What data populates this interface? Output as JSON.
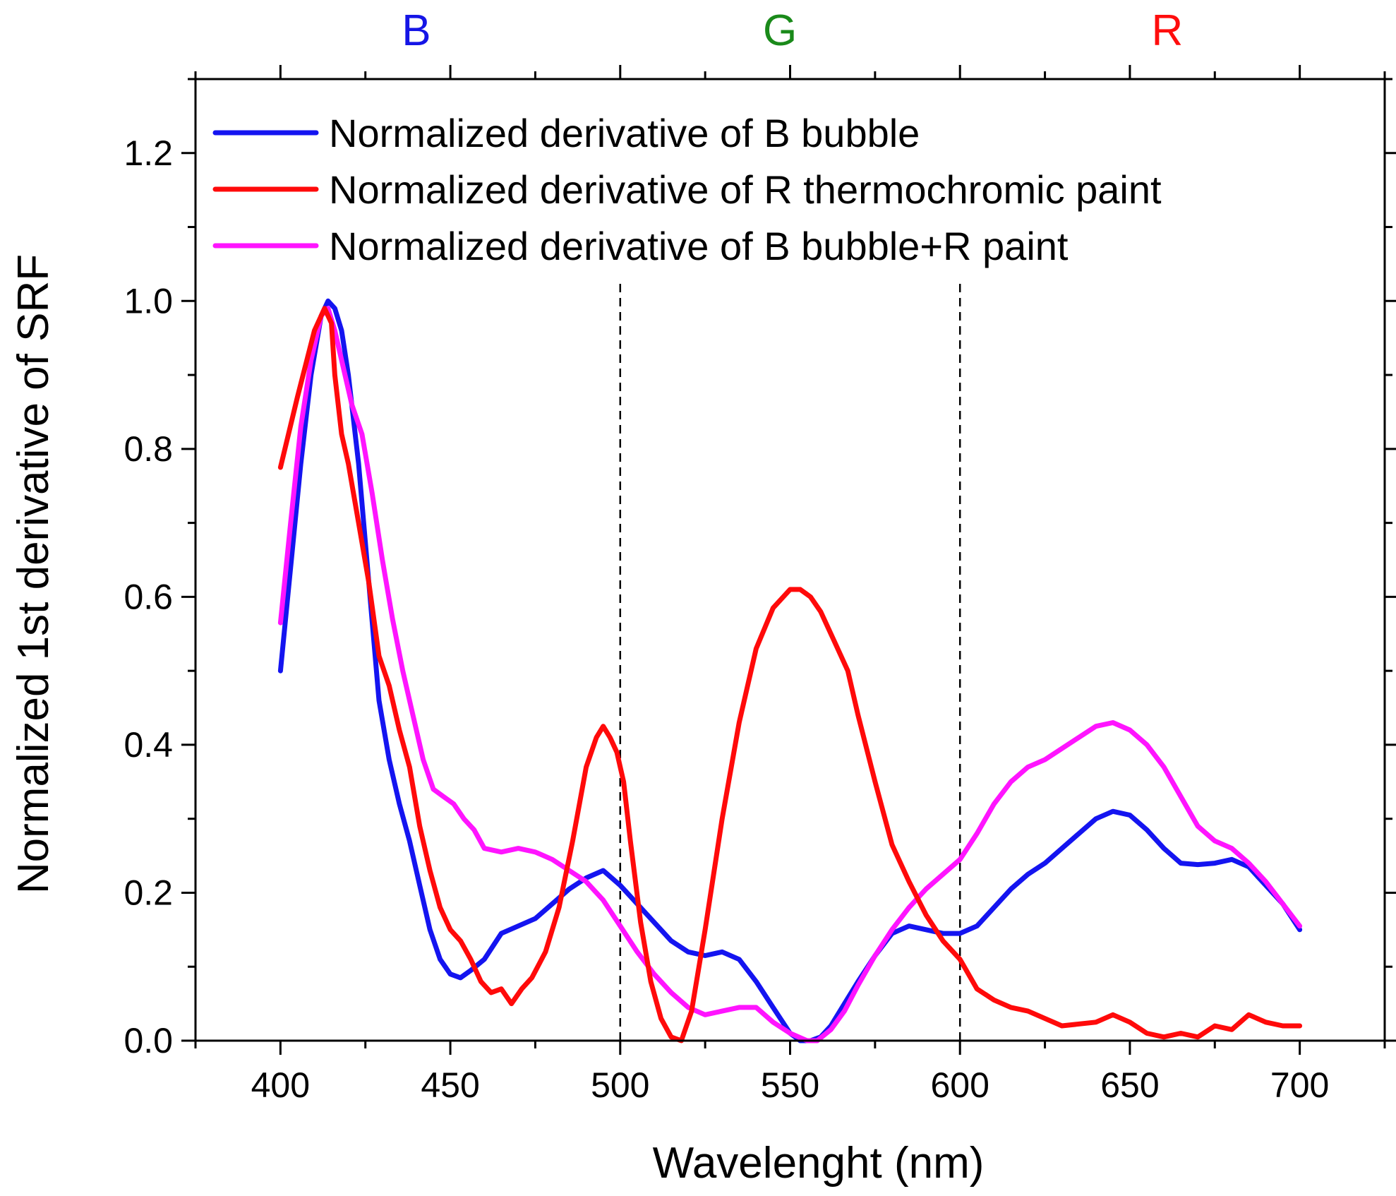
{
  "chart_data": {
    "type": "line",
    "xlabel": "Wavelenght (nm)",
    "ylabel": "Normalized 1st derivative of SRF",
    "xlim": [
      375,
      725
    ],
    "ylim": [
      0,
      1.3
    ],
    "xticks": [
      400,
      450,
      500,
      550,
      600,
      650,
      700
    ],
    "xtick_labels": [
      "400",
      "450",
      "500",
      "550",
      "600",
      "650",
      "700"
    ],
    "yticks": [
      0,
      0.2,
      0.4,
      0.6,
      0.8,
      1.0,
      1.2
    ],
    "ytick_labels": [
      "0.0",
      "0.2",
      "0.4",
      "0.6",
      "0.8",
      "1.0",
      "1.2"
    ],
    "grid": false,
    "legend_position": "top-left",
    "vlines": [
      500,
      600
    ],
    "band_labels": [
      {
        "text": "B",
        "x": 440,
        "color": "#1515e6"
      },
      {
        "text": "G",
        "x": 547,
        "color": "#1a8a1a"
      },
      {
        "text": "R",
        "x": 661,
        "color": "#ff0d0d"
      }
    ],
    "series": [
      {
        "name": "Normalized derivative of B bubble",
        "color": "#1414f0",
        "x": [
          400,
          403,
          406,
          409,
          412,
          414,
          416,
          418,
          420,
          423,
          426,
          429,
          432,
          435,
          438,
          441,
          444,
          447,
          450,
          453,
          456,
          460,
          465,
          470,
          475,
          480,
          485,
          490,
          495,
          500,
          505,
          510,
          515,
          520,
          525,
          530,
          535,
          540,
          545,
          550,
          553,
          556,
          559,
          562,
          566,
          570,
          575,
          580,
          585,
          590,
          595,
          600,
          605,
          610,
          615,
          620,
          625,
          630,
          635,
          640,
          645,
          650,
          655,
          660,
          665,
          670,
          675,
          680,
          685,
          690,
          695,
          700
        ],
        "values": [
          0.5,
          0.64,
          0.78,
          0.9,
          0.98,
          1.0,
          0.99,
          0.96,
          0.9,
          0.78,
          0.62,
          0.46,
          0.38,
          0.32,
          0.27,
          0.21,
          0.15,
          0.11,
          0.09,
          0.085,
          0.095,
          0.11,
          0.145,
          0.155,
          0.165,
          0.185,
          0.205,
          0.22,
          0.23,
          0.21,
          0.185,
          0.16,
          0.135,
          0.12,
          0.115,
          0.12,
          0.11,
          0.08,
          0.045,
          0.01,
          0.0,
          0.0,
          0.005,
          0.02,
          0.05,
          0.08,
          0.115,
          0.145,
          0.155,
          0.15,
          0.145,
          0.145,
          0.155,
          0.18,
          0.205,
          0.225,
          0.24,
          0.26,
          0.28,
          0.3,
          0.31,
          0.305,
          0.285,
          0.26,
          0.24,
          0.238,
          0.24,
          0.245,
          0.235,
          0.21,
          0.185,
          0.15
        ]
      },
      {
        "name": "Normalized derivative of R thermochromic paint",
        "color": "#ff0a0a",
        "x": [
          400,
          405,
          410,
          413,
          415,
          416,
          418,
          420,
          423,
          426,
          429,
          432,
          435,
          438,
          441,
          444,
          447,
          450,
          453,
          456,
          459,
          462,
          465,
          468,
          471,
          474,
          478,
          482,
          486,
          490,
          493,
          495,
          497,
          499,
          501,
          503,
          506,
          509,
          512,
          515,
          518,
          521,
          525,
          530,
          535,
          540,
          545,
          550,
          553,
          556,
          559,
          563,
          567,
          570,
          575,
          580,
          585,
          590,
          595,
          600,
          605,
          610,
          615,
          620,
          625,
          630,
          640,
          645,
          650,
          655,
          660,
          665,
          670,
          675,
          680,
          685,
          690,
          695,
          700
        ],
        "values": [
          0.775,
          0.87,
          0.96,
          0.99,
          0.97,
          0.9,
          0.82,
          0.78,
          0.7,
          0.62,
          0.52,
          0.48,
          0.42,
          0.37,
          0.29,
          0.23,
          0.18,
          0.15,
          0.135,
          0.11,
          0.08,
          0.065,
          0.07,
          0.05,
          0.07,
          0.085,
          0.12,
          0.18,
          0.27,
          0.37,
          0.41,
          0.425,
          0.41,
          0.39,
          0.35,
          0.27,
          0.16,
          0.08,
          0.03,
          0.005,
          0.0,
          0.04,
          0.15,
          0.3,
          0.43,
          0.53,
          0.585,
          0.61,
          0.61,
          0.6,
          0.58,
          0.54,
          0.5,
          0.44,
          0.35,
          0.265,
          0.215,
          0.17,
          0.135,
          0.11,
          0.07,
          0.055,
          0.045,
          0.04,
          0.03,
          0.02,
          0.025,
          0.035,
          0.025,
          0.01,
          0.005,
          0.01,
          0.005,
          0.02,
          0.015,
          0.035,
          0.025,
          0.02,
          0.02
        ]
      },
      {
        "name": "Normalized derivative of B bubble+R paint",
        "color": "#ff14ff",
        "x": [
          400,
          403,
          406,
          409,
          412,
          414,
          416,
          418,
          421,
          424,
          427,
          430,
          433,
          436,
          439,
          442,
          445,
          448,
          451,
          454,
          457,
          460,
          465,
          470,
          475,
          480,
          485,
          490,
          495,
          500,
          505,
          510,
          515,
          520,
          525,
          530,
          535,
          540,
          545,
          550,
          555,
          558,
          562,
          566,
          570,
          575,
          580,
          585,
          590,
          595,
          600,
          605,
          610,
          615,
          620,
          625,
          630,
          635,
          640,
          645,
          650,
          655,
          660,
          665,
          670,
          675,
          680,
          685,
          690,
          695,
          700
        ],
        "values": [
          0.565,
          0.7,
          0.83,
          0.92,
          0.98,
          0.99,
          0.96,
          0.92,
          0.86,
          0.82,
          0.74,
          0.65,
          0.57,
          0.5,
          0.44,
          0.38,
          0.34,
          0.33,
          0.32,
          0.3,
          0.285,
          0.26,
          0.255,
          0.26,
          0.255,
          0.245,
          0.23,
          0.215,
          0.19,
          0.155,
          0.12,
          0.09,
          0.065,
          0.045,
          0.035,
          0.04,
          0.045,
          0.045,
          0.025,
          0.01,
          0.0,
          0.0,
          0.015,
          0.04,
          0.075,
          0.115,
          0.15,
          0.18,
          0.205,
          0.225,
          0.245,
          0.28,
          0.32,
          0.35,
          0.37,
          0.38,
          0.395,
          0.41,
          0.425,
          0.43,
          0.42,
          0.4,
          0.37,
          0.33,
          0.29,
          0.27,
          0.26,
          0.24,
          0.215,
          0.185,
          0.155
        ]
      }
    ]
  }
}
